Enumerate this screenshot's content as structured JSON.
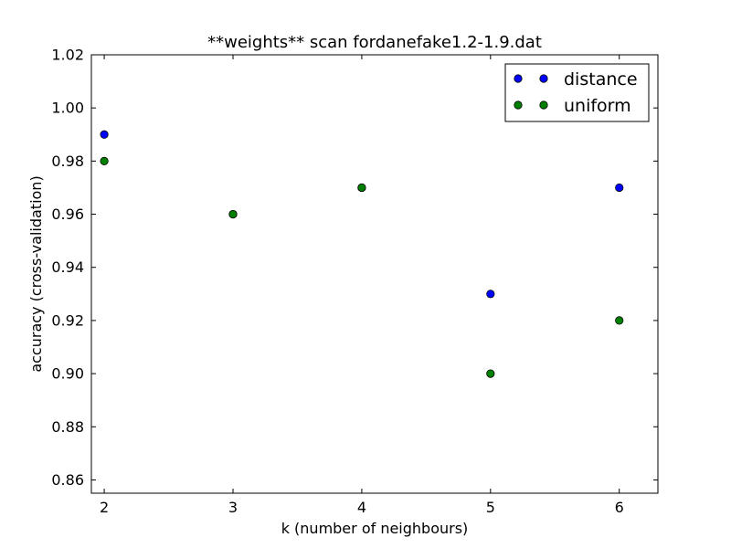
{
  "chart_data": {
    "type": "scatter",
    "title": "**weights** scan fordanefake1.2-1.9.dat",
    "xlabel": "k (number of neighbours)",
    "ylabel": "accuracy (cross-validation)",
    "xlim": [
      1.9,
      6.3
    ],
    "ylim": [
      0.855,
      1.02
    ],
    "xticks": [
      2,
      3,
      4,
      5,
      6
    ],
    "xtick_labels": [
      "2",
      "3",
      "4",
      "5",
      "6"
    ],
    "yticks": [
      0.86,
      0.88,
      0.9,
      0.92,
      0.94,
      0.96,
      0.98,
      1.0,
      1.02
    ],
    "ytick_labels": [
      "0.86",
      "0.88",
      "0.90",
      "0.92",
      "0.94",
      "0.96",
      "0.98",
      "1.00",
      "1.02"
    ],
    "grid": false,
    "legend_position": "top-right",
    "series": [
      {
        "name": "distance",
        "color": "#0000ff",
        "x": [
          2,
          3,
          4,
          5,
          6
        ],
        "y": [
          0.99,
          0.96,
          0.97,
          0.93,
          0.97
        ]
      },
      {
        "name": "uniform",
        "color": "#008000",
        "x": [
          2,
          3,
          4,
          5,
          6
        ],
        "y": [
          0.98,
          0.96,
          0.97,
          0.9,
          0.92
        ]
      }
    ]
  }
}
